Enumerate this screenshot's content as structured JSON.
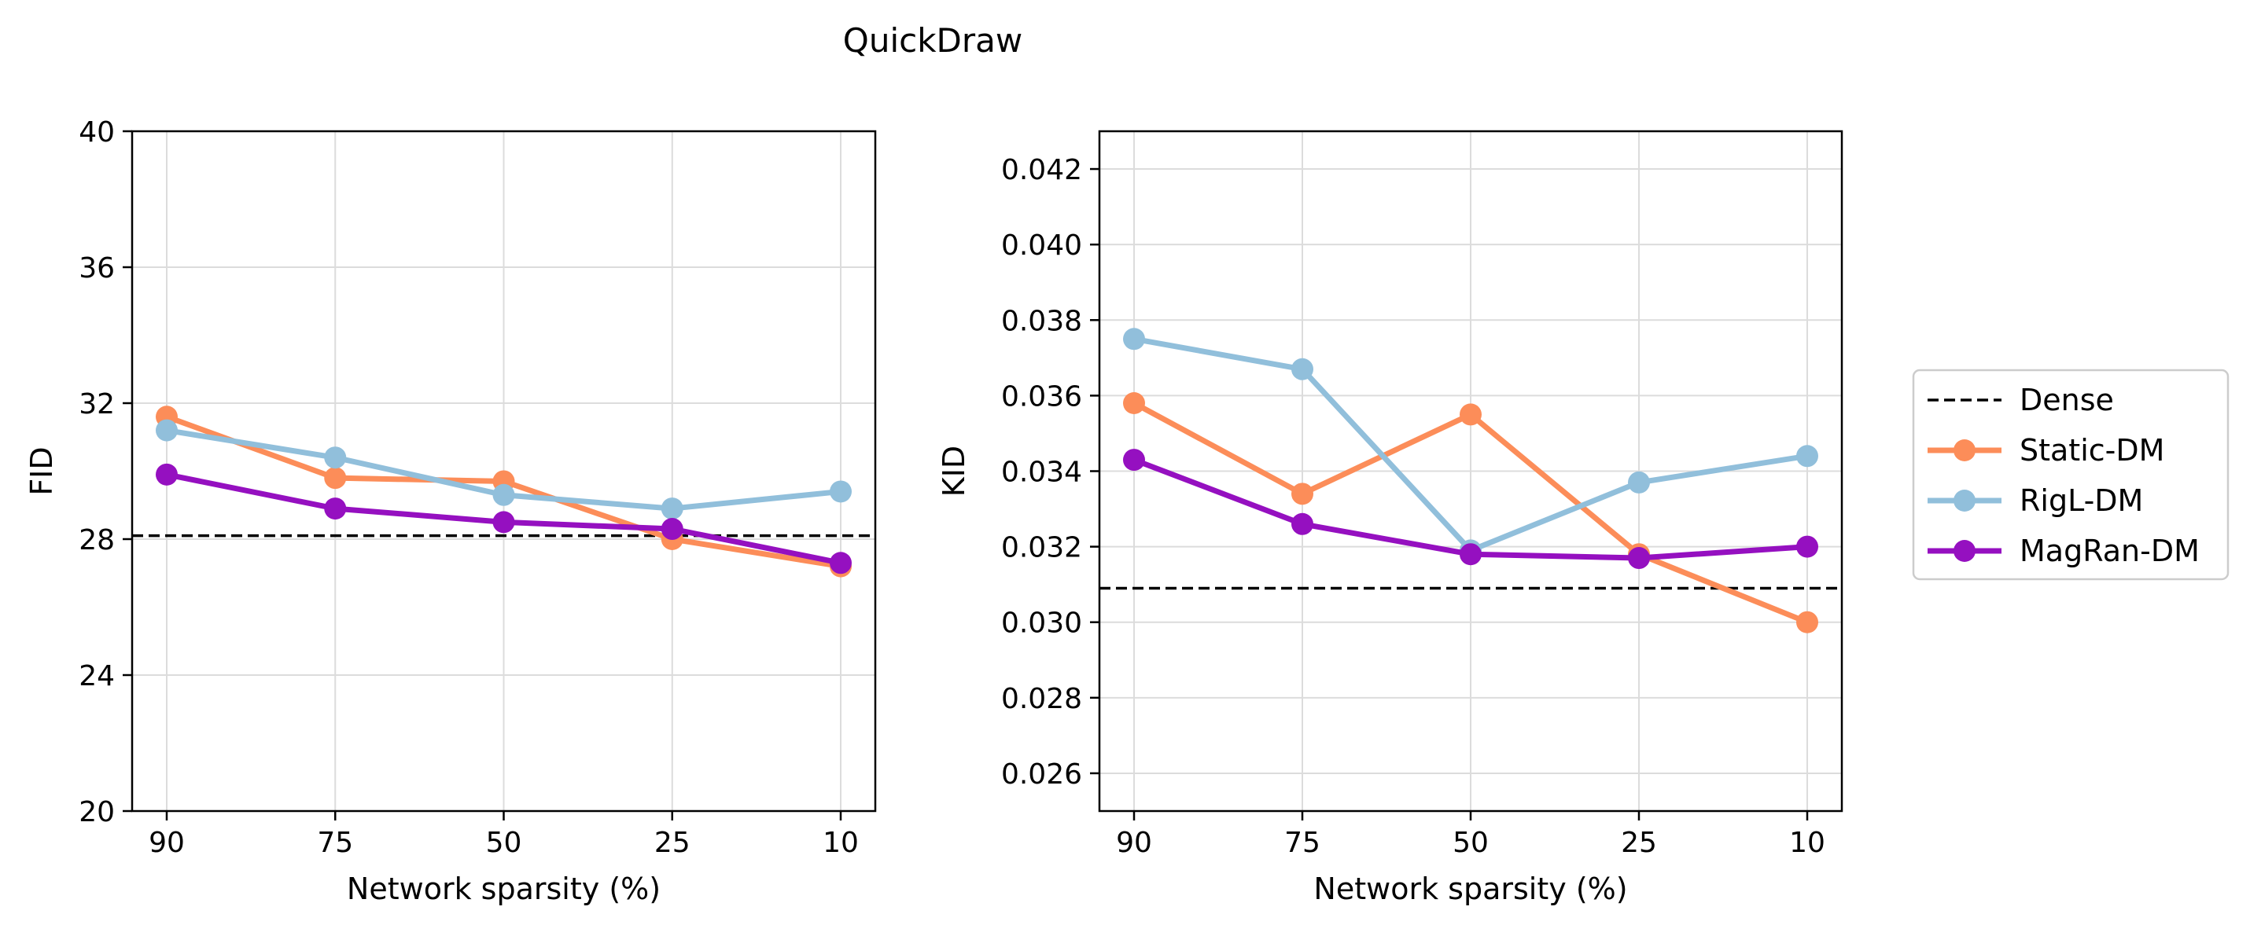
{
  "figure": {
    "title": "QuickDraw"
  },
  "legend": {
    "placement": "right",
    "entries": [
      {
        "name": "Dense",
        "style": "dashed",
        "color": "#000000"
      },
      {
        "name": "Static-DM",
        "style": "line-marker",
        "color": "#fc8d59"
      },
      {
        "name": "RigL-DM",
        "style": "line-marker",
        "color": "#91bfdb"
      },
      {
        "name": "MagRan-DM",
        "style": "line-marker",
        "color": "#9510c0"
      }
    ]
  },
  "chart_data": [
    {
      "type": "line",
      "xlabel": "Network sparsity (%)",
      "ylabel": "FID",
      "categories": [
        "90",
        "75",
        "50",
        "25",
        "10"
      ],
      "ylim": [
        20,
        40
      ],
      "yticks": [
        20,
        24,
        28,
        32,
        36,
        40
      ],
      "ytick_labels": [
        "20",
        "24",
        "28",
        "32",
        "36",
        "40"
      ],
      "grid": true,
      "dense_baseline": 28.1,
      "series": [
        {
          "name": "Static-DM",
          "color": "#fc8d59",
          "values": [
            31.6,
            29.8,
            29.7,
            28.0,
            27.2
          ]
        },
        {
          "name": "RigL-DM",
          "color": "#91bfdb",
          "values": [
            31.2,
            30.4,
            29.3,
            28.9,
            29.4
          ]
        },
        {
          "name": "MagRan-DM",
          "color": "#9510c0",
          "values": [
            29.9,
            28.9,
            28.5,
            28.3,
            27.3
          ]
        }
      ]
    },
    {
      "type": "line",
      "xlabel": "Network sparsity (%)",
      "ylabel": "KID",
      "categories": [
        "90",
        "75",
        "50",
        "25",
        "10"
      ],
      "ylim": [
        0.025,
        0.043
      ],
      "yticks": [
        0.026,
        0.028,
        0.03,
        0.032,
        0.034,
        0.036,
        0.038,
        0.04,
        0.042
      ],
      "ytick_labels": [
        "0.026",
        "0.028",
        "0.030",
        "0.032",
        "0.034",
        "0.036",
        "0.038",
        "0.040",
        "0.042"
      ],
      "grid": true,
      "dense_baseline": 0.0309,
      "series": [
        {
          "name": "Static-DM",
          "color": "#fc8d59",
          "values": [
            0.0358,
            0.0334,
            0.0355,
            0.0318,
            0.03
          ]
        },
        {
          "name": "RigL-DM",
          "color": "#91bfdb",
          "values": [
            0.0375,
            0.0367,
            0.0319,
            0.0337,
            0.0344
          ]
        },
        {
          "name": "MagRan-DM",
          "color": "#9510c0",
          "values": [
            0.0343,
            0.0326,
            0.0318,
            0.0317,
            0.032
          ]
        }
      ]
    }
  ]
}
